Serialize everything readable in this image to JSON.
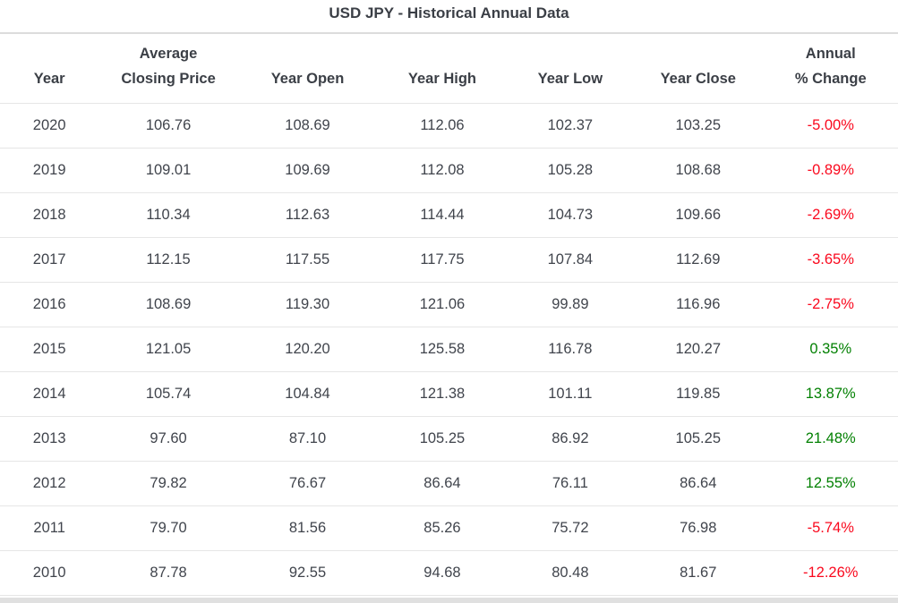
{
  "chart_data": {
    "type": "table",
    "title": "USD JPY - Historical Annual Data",
    "columns": [
      {
        "key": "year",
        "label": "Year",
        "lines": [
          "Year"
        ]
      },
      {
        "key": "avg_closing_price",
        "label": "Average Closing Price",
        "lines": [
          "Average",
          "Closing Price"
        ]
      },
      {
        "key": "year_open",
        "label": "Year Open",
        "lines": [
          "Year Open"
        ]
      },
      {
        "key": "year_high",
        "label": "Year High",
        "lines": [
          "Year High"
        ]
      },
      {
        "key": "year_low",
        "label": "Year Low",
        "lines": [
          "Year Low"
        ]
      },
      {
        "key": "year_close",
        "label": "Year Close",
        "lines": [
          "Year Close"
        ]
      },
      {
        "key": "annual_pct_change",
        "label": "Annual % Change",
        "lines": [
          "Annual",
          "% Change"
        ]
      }
    ],
    "rows": [
      [
        "2020",
        "106.76",
        "108.69",
        "112.06",
        "102.37",
        "103.25",
        "-5.00%"
      ],
      [
        "2019",
        "109.01",
        "109.69",
        "112.08",
        "105.28",
        "108.68",
        "-0.89%"
      ],
      [
        "2018",
        "110.34",
        "112.63",
        "114.44",
        "104.73",
        "109.66",
        "-2.69%"
      ],
      [
        "2017",
        "112.15",
        "117.55",
        "117.75",
        "107.84",
        "112.69",
        "-3.65%"
      ],
      [
        "2016",
        "108.69",
        "119.30",
        "121.06",
        "99.89",
        "116.96",
        "-2.75%"
      ],
      [
        "2015",
        "121.05",
        "120.20",
        "125.58",
        "116.78",
        "120.27",
        "0.35%"
      ],
      [
        "2014",
        "105.74",
        "104.84",
        "121.38",
        "101.11",
        "119.85",
        "13.87%"
      ],
      [
        "2013",
        "97.60",
        "87.10",
        "105.25",
        "86.92",
        "105.25",
        "21.48%"
      ],
      [
        "2012",
        "79.82",
        "76.67",
        "86.64",
        "76.11",
        "86.64",
        "12.55%"
      ],
      [
        "2011",
        "79.70",
        "81.56",
        "85.26",
        "75.72",
        "76.98",
        "-5.74%"
      ],
      [
        "2010",
        "87.78",
        "92.55",
        "94.68",
        "80.48",
        "81.67",
        "-12.26%"
      ]
    ],
    "colors": {
      "positive_change": "#028002",
      "negative_change": "#fa091e",
      "text": "#40444c",
      "divider": "#e6e6e6"
    }
  }
}
